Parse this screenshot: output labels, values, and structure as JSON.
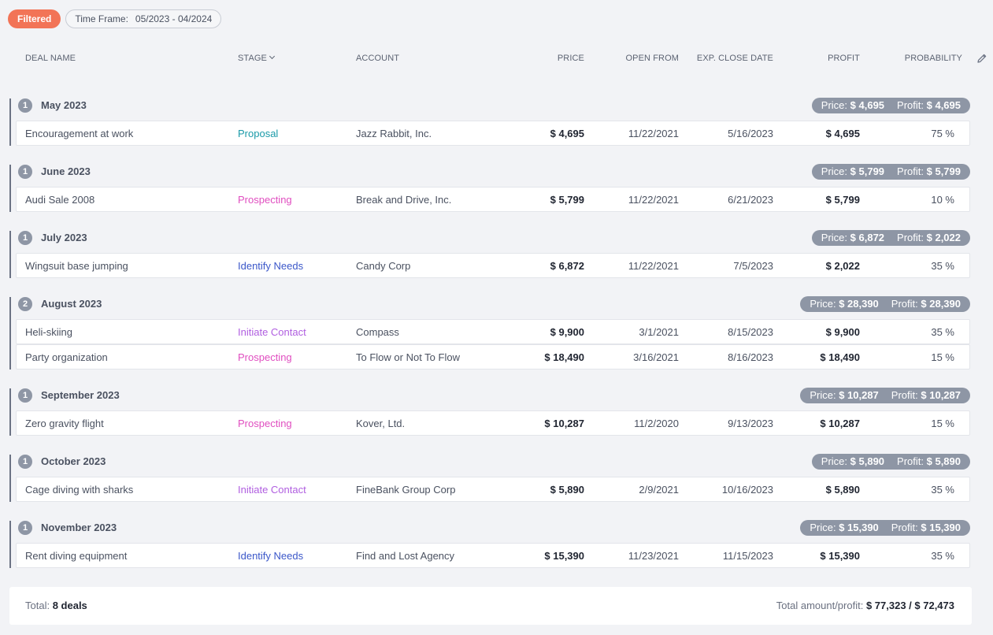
{
  "filters": {
    "filtered_label": "Filtered",
    "timeframe_label": "Time Frame:",
    "timeframe_value": "05/2023 - 04/2024"
  },
  "columns": [
    "DEAL NAME",
    "STAGE",
    "ACCOUNT",
    "PRICE",
    "OPEN FROM",
    "EXP. CLOSE DATE",
    "PROFIT",
    "PROBABILITY"
  ],
  "colors": {
    "filtered": "#f27457",
    "group_pill": "#8e96a5",
    "proposal": "#1a9aa8",
    "prospecting": "#e04ec0",
    "identify_needs": "#3b57c9",
    "initiate_contact": "#b05ee0"
  },
  "groups": [
    {
      "count": "1",
      "title": "May 2023",
      "price_label": "Price:",
      "price": "$ 4,695",
      "profit_label": "Profit:",
      "profit": "$ 4,695",
      "deals": [
        {
          "name": "Encouragement at work",
          "stage": "Proposal",
          "account": "Jazz Rabbit, Inc.",
          "price": "$ 4,695",
          "open": "11/22/2021",
          "close": "5/16/2023",
          "profit": "$ 4,695",
          "prob": "75 %"
        }
      ]
    },
    {
      "count": "1",
      "title": "June 2023",
      "price_label": "Price:",
      "price": "$ 5,799",
      "profit_label": "Profit:",
      "profit": "$ 5,799",
      "deals": [
        {
          "name": "Audi Sale 2008",
          "stage": "Prospecting",
          "account": "Break and Drive, Inc.",
          "price": "$ 5,799",
          "open": "11/22/2021",
          "close": "6/21/2023",
          "profit": "$ 5,799",
          "prob": "10 %"
        }
      ]
    },
    {
      "count": "1",
      "title": "July 2023",
      "price_label": "Price:",
      "price": "$ 6,872",
      "profit_label": "Profit:",
      "profit": "$ 2,022",
      "deals": [
        {
          "name": "Wingsuit base jumping",
          "stage": "Identify Needs",
          "account": "Candy Corp",
          "price": "$ 6,872",
          "open": "11/22/2021",
          "close": "7/5/2023",
          "profit": "$ 2,022",
          "prob": "35 %"
        }
      ]
    },
    {
      "count": "2",
      "title": "August 2023",
      "price_label": "Price:",
      "price": "$ 28,390",
      "profit_label": "Profit:",
      "profit": "$ 28,390",
      "deals": [
        {
          "name": "Heli-skiing",
          "stage": "Initiate Contact",
          "account": "Compass",
          "price": "$ 9,900",
          "open": "3/1/2021",
          "close": "8/15/2023",
          "profit": "$ 9,900",
          "prob": "35 %"
        },
        {
          "name": "Party organization",
          "stage": "Prospecting",
          "account": "To Flow or Not To Flow",
          "price": "$ 18,490",
          "open": "3/16/2021",
          "close": "8/16/2023",
          "profit": "$ 18,490",
          "prob": "15 %"
        }
      ]
    },
    {
      "count": "1",
      "title": "September 2023",
      "price_label": "Price:",
      "price": "$ 10,287",
      "profit_label": "Profit:",
      "profit": "$ 10,287",
      "deals": [
        {
          "name": "Zero gravity flight",
          "stage": "Prospecting",
          "account": "Kover, Ltd.",
          "price": "$ 10,287",
          "open": "11/2/2020",
          "close": "9/13/2023",
          "profit": "$ 10,287",
          "prob": "15 %"
        }
      ]
    },
    {
      "count": "1",
      "title": "October 2023",
      "price_label": "Price:",
      "price": "$ 5,890",
      "profit_label": "Profit:",
      "profit": "$ 5,890",
      "deals": [
        {
          "name": "Cage diving with sharks",
          "stage": "Initiate Contact",
          "account": "FineBank Group Corp",
          "price": "$ 5,890",
          "open": "2/9/2021",
          "close": "10/16/2023",
          "profit": "$ 5,890",
          "prob": "35 %"
        }
      ]
    },
    {
      "count": "1",
      "title": "November 2023",
      "price_label": "Price:",
      "price": "$ 15,390",
      "profit_label": "Profit:",
      "profit": "$ 15,390",
      "deals": [
        {
          "name": "Rent diving equipment",
          "stage": "Identify Needs",
          "account": "Find and Lost Agency",
          "price": "$ 15,390",
          "open": "11/23/2021",
          "close": "11/15/2023",
          "profit": "$ 15,390",
          "prob": "35 %"
        }
      ]
    }
  ],
  "footer": {
    "total_label": "Total:",
    "total_value": "8 deals",
    "amount_label": "Total amount/profit:",
    "amount_value": "$ 77,323 / $ 72,473"
  }
}
